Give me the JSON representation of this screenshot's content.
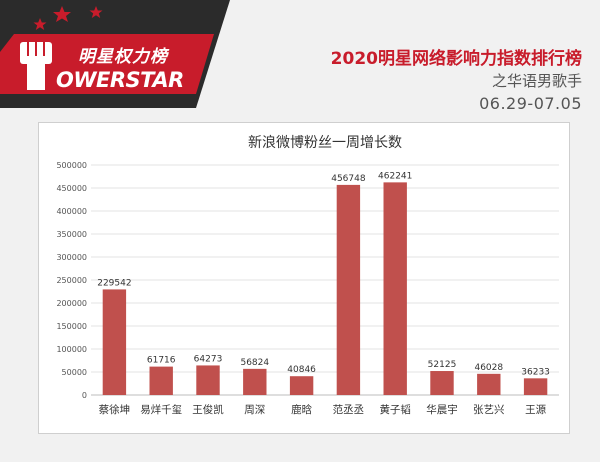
{
  "header": {
    "logo_cn": "明星权力榜",
    "logo_en": "OWERSTAR",
    "title": "2020明星网络影响力指数排行榜",
    "subtitle": "之华语男歌手",
    "date_range": "06.29-07.05"
  },
  "colors": {
    "bar": "#c0504d",
    "brand_red": "#c81c2b",
    "logo_dark": "#2b2b2b"
  },
  "chart_data": {
    "type": "bar",
    "title": "新浪微博粉丝一周增长数",
    "categories": [
      "蔡徐坤",
      "易烊千玺",
      "王俊凯",
      "周深",
      "鹿晗",
      "范丞丞",
      "黄子韬",
      "华晨宇",
      "张艺兴",
      "王源"
    ],
    "values": [
      229542,
      61716,
      64273,
      56824,
      40846,
      456748,
      462241,
      52125,
      46028,
      36233
    ],
    "ylim": [
      0,
      500000
    ],
    "yticks": [
      0,
      50000,
      100000,
      150000,
      200000,
      250000,
      300000,
      350000,
      400000,
      450000,
      500000
    ],
    "grid": true,
    "xlabel": "",
    "ylabel": ""
  }
}
